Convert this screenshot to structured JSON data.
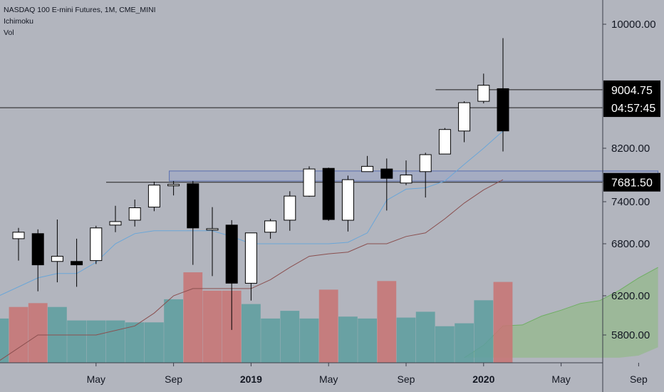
{
  "header": {
    "symbol": "NASDAQ 100 E-mini Futures, 1M, CME_MINI",
    "indicator1": "Ichimoku",
    "indicator2": "Vol"
  },
  "price_tags": [
    {
      "value": 9004.75,
      "label": "9004.75"
    },
    {
      "value": 8750,
      "label": "04:57:45"
    },
    {
      "value": 7681.5,
      "label": "7681.50"
    }
  ],
  "colors": {
    "background": "#b2b5be",
    "up_body": "#ffffff",
    "down_body": "#000000",
    "wick": "#000000",
    "vol_up": "#5f9e9f",
    "vol_down": "#c77575",
    "tenkan": "#6aa6d8",
    "kijun": "#8a4f4f",
    "cloud": "#8bb97a",
    "zone_fill": "#9aa4c4",
    "zone_border": "#5a6fb0",
    "tag_bg": "#000000"
  },
  "chart_data": {
    "type": "candlestick",
    "title": "NASDAQ 100 E-mini Futures, 1M, CME_MINI",
    "y_ticks": [
      5800,
      6200,
      6800,
      7400,
      8200,
      10000
    ],
    "y_tick_labels": [
      "5800.00",
      "6200.00",
      "6800.00",
      "7400.00",
      "8200.00",
      "10000.00"
    ],
    "x_ticks": [
      {
        "label": "May",
        "month": "2018-05",
        "bold": false
      },
      {
        "label": "Sep",
        "month": "2018-09",
        "bold": false
      },
      {
        "label": "2019",
        "month": "2019-01",
        "bold": true
      },
      {
        "label": "May",
        "month": "2019-05",
        "bold": false
      },
      {
        "label": "Sep",
        "month": "2019-09",
        "bold": false
      },
      {
        "label": "2020",
        "month": "2020-01",
        "bold": true
      },
      {
        "label": "May",
        "month": "2020-05",
        "bold": false
      },
      {
        "label": "Sep",
        "month": "2020-09",
        "bold": false
      }
    ],
    "candles": [
      {
        "month": "2018-01",
        "open": 6870,
        "high": 7020,
        "low": 6600,
        "close": 6960
      },
      {
        "month": "2018-02",
        "open": 6940,
        "high": 7000,
        "low": 6250,
        "close": 6550
      },
      {
        "month": "2018-03",
        "open": 6590,
        "high": 7140,
        "low": 6350,
        "close": 6650
      },
      {
        "month": "2018-04",
        "open": 6590,
        "high": 6870,
        "low": 6300,
        "close": 6550
      },
      {
        "month": "2018-05",
        "open": 6600,
        "high": 7050,
        "low": 6560,
        "close": 7020
      },
      {
        "month": "2018-06",
        "open": 7060,
        "high": 7340,
        "low": 6960,
        "close": 7110
      },
      {
        "month": "2018-07",
        "open": 7130,
        "high": 7430,
        "low": 7040,
        "close": 7310
      },
      {
        "month": "2018-08",
        "open": 7320,
        "high": 7690,
        "low": 7260,
        "close": 7640
      },
      {
        "month": "2018-09",
        "open": 7640,
        "high": 7700,
        "low": 7490,
        "close": 7650
      },
      {
        "month": "2018-10",
        "open": 7660,
        "high": 7700,
        "low": 6550,
        "close": 7020
      },
      {
        "month": "2018-11",
        "open": 7000,
        "high": 7320,
        "low": 6420,
        "close": 7010
      },
      {
        "month": "2018-12",
        "open": 7060,
        "high": 7130,
        "low": 5850,
        "close": 6340
      },
      {
        "month": "2019-01",
        "open": 6340,
        "high": 6950,
        "low": 6150,
        "close": 6950
      },
      {
        "month": "2019-02",
        "open": 6960,
        "high": 7150,
        "low": 6870,
        "close": 7120
      },
      {
        "month": "2019-03",
        "open": 7130,
        "high": 7550,
        "low": 6980,
        "close": 7480
      },
      {
        "month": "2019-04",
        "open": 7480,
        "high": 7920,
        "low": 7470,
        "close": 7880
      },
      {
        "month": "2019-05",
        "open": 7890,
        "high": 7900,
        "low": 7120,
        "close": 7140
      },
      {
        "month": "2019-06",
        "open": 7130,
        "high": 7780,
        "low": 6970,
        "close": 7720
      },
      {
        "month": "2019-07",
        "open": 7840,
        "high": 8080,
        "low": 7840,
        "close": 7920
      },
      {
        "month": "2019-08",
        "open": 7880,
        "high": 8040,
        "low": 7270,
        "close": 7740
      },
      {
        "month": "2019-09",
        "open": 7670,
        "high": 8010,
        "low": 7640,
        "close": 7790
      },
      {
        "month": "2019-10",
        "open": 7840,
        "high": 8130,
        "low": 7460,
        "close": 8100
      },
      {
        "month": "2019-11",
        "open": 8110,
        "high": 8470,
        "low": 8110,
        "close": 8450
      },
      {
        "month": "2019-12",
        "open": 8430,
        "high": 8840,
        "low": 8280,
        "close": 8820
      },
      {
        "month": "2020-01",
        "open": 8840,
        "high": 9240,
        "low": 8810,
        "close": 9070
      },
      {
        "month": "2020-02",
        "open": 9020,
        "high": 9780,
        "low": 8150,
        "close": 8430
      }
    ],
    "volume_bars": [
      {
        "month": "2017-12",
        "direction": "up",
        "level": 0.46
      },
      {
        "month": "2018-01",
        "direction": "down",
        "level": 0.58
      },
      {
        "month": "2018-02",
        "direction": "down",
        "level": 0.62
      },
      {
        "month": "2018-03",
        "direction": "up",
        "level": 0.58
      },
      {
        "month": "2018-04",
        "direction": "up",
        "level": 0.44
      },
      {
        "month": "2018-05",
        "direction": "up",
        "level": 0.44
      },
      {
        "month": "2018-06",
        "direction": "up",
        "level": 0.44
      },
      {
        "month": "2018-07",
        "direction": "up",
        "level": 0.42
      },
      {
        "month": "2018-08",
        "direction": "up",
        "level": 0.42
      },
      {
        "month": "2018-09",
        "direction": "up",
        "level": 0.66
      },
      {
        "month": "2018-10",
        "direction": "down",
        "level": 0.94
      },
      {
        "month": "2018-11",
        "direction": "down",
        "level": 0.75
      },
      {
        "month": "2018-12",
        "direction": "down",
        "level": 0.75
      },
      {
        "month": "2019-01",
        "direction": "up",
        "level": 0.61
      },
      {
        "month": "2019-02",
        "direction": "up",
        "level": 0.46
      },
      {
        "month": "2019-03",
        "direction": "up",
        "level": 0.54
      },
      {
        "month": "2019-04",
        "direction": "up",
        "level": 0.46
      },
      {
        "month": "2019-05",
        "direction": "down",
        "level": 0.76
      },
      {
        "month": "2019-06",
        "direction": "up",
        "level": 0.48
      },
      {
        "month": "2019-07",
        "direction": "up",
        "level": 0.46
      },
      {
        "month": "2019-08",
        "direction": "down",
        "level": 0.85
      },
      {
        "month": "2019-09",
        "direction": "up",
        "level": 0.47
      },
      {
        "month": "2019-10",
        "direction": "up",
        "level": 0.53
      },
      {
        "month": "2019-11",
        "direction": "up",
        "level": 0.38
      },
      {
        "month": "2019-12",
        "direction": "up",
        "level": 0.41
      },
      {
        "month": "2020-01",
        "direction": "up",
        "level": 0.65
      },
      {
        "month": "2020-02",
        "direction": "down",
        "level": 0.84
      }
    ],
    "tenkan_sen": [
      {
        "month": "2017-12",
        "value": 6200
      },
      {
        "month": "2018-02",
        "value": 6400
      },
      {
        "month": "2018-03",
        "value": 6450
      },
      {
        "month": "2018-04",
        "value": 6450
      },
      {
        "month": "2018-05",
        "value": 6580
      },
      {
        "month": "2018-06",
        "value": 6800
      },
      {
        "month": "2018-07",
        "value": 6940
      },
      {
        "month": "2018-08",
        "value": 6980
      },
      {
        "month": "2018-09",
        "value": 6980
      },
      {
        "month": "2018-10",
        "value": 6980
      },
      {
        "month": "2018-11",
        "value": 6980
      },
      {
        "month": "2018-12",
        "value": 6900
      },
      {
        "month": "2019-01",
        "value": 6800
      },
      {
        "month": "2019-02",
        "value": 6800
      },
      {
        "month": "2019-03",
        "value": 6800
      },
      {
        "month": "2019-04",
        "value": 6800
      },
      {
        "month": "2019-05",
        "value": 6800
      },
      {
        "month": "2019-06",
        "value": 6820
      },
      {
        "month": "2019-07",
        "value": 6950
      },
      {
        "month": "2019-08",
        "value": 7420
      },
      {
        "month": "2019-09",
        "value": 7580
      },
      {
        "month": "2019-10",
        "value": 7600
      },
      {
        "month": "2019-11",
        "value": 7700
      },
      {
        "month": "2019-12",
        "value": 7950
      },
      {
        "month": "2020-01",
        "value": 8200
      },
      {
        "month": "2020-02",
        "value": 8430
      }
    ],
    "kijun_sen": [
      {
        "month": "2017-12",
        "value": 5550
      },
      {
        "month": "2018-02",
        "value": 5800
      },
      {
        "month": "2018-03",
        "value": 5800
      },
      {
        "month": "2018-04",
        "value": 5800
      },
      {
        "month": "2018-05",
        "value": 5800
      },
      {
        "month": "2018-07",
        "value": 5890
      },
      {
        "month": "2018-08",
        "value": 6020
      },
      {
        "month": "2018-09",
        "value": 6200
      },
      {
        "month": "2018-10",
        "value": 6280
      },
      {
        "month": "2018-11",
        "value": 6280
      },
      {
        "month": "2018-12",
        "value": 6280
      },
      {
        "month": "2019-01",
        "value": 6280
      },
      {
        "month": "2019-02",
        "value": 6380
      },
      {
        "month": "2019-03",
        "value": 6520
      },
      {
        "month": "2019-04",
        "value": 6650
      },
      {
        "month": "2019-05",
        "value": 6680
      },
      {
        "month": "2019-06",
        "value": 6700
      },
      {
        "month": "2019-07",
        "value": 6800
      },
      {
        "month": "2019-08",
        "value": 6800
      },
      {
        "month": "2019-09",
        "value": 6900
      },
      {
        "month": "2019-10",
        "value": 6950
      },
      {
        "month": "2019-11",
        "value": 7150
      },
      {
        "month": "2019-12",
        "value": 7380
      },
      {
        "month": "2020-01",
        "value": 7570
      },
      {
        "month": "2020-02",
        "value": 7720
      }
    ],
    "cloud_top": [
      {
        "month": "2019-12",
        "value": 5580
      },
      {
        "month": "2020-01",
        "value": 5700
      },
      {
        "month": "2020-02",
        "value": 5890
      },
      {
        "month": "2020-03",
        "value": 5900
      },
      {
        "month": "2020-04",
        "value": 5990
      },
      {
        "month": "2020-05",
        "value": 6050
      },
      {
        "month": "2020-06",
        "value": 6120
      },
      {
        "month": "2020-07",
        "value": 6150
      },
      {
        "month": "2020-08",
        "value": 6260
      },
      {
        "month": "2020-09",
        "value": 6400
      },
      {
        "month": "2020-10",
        "value": 6520
      }
    ],
    "cloud_bottom": [
      {
        "month": "2019-12",
        "value": 5580
      },
      {
        "month": "2020-01",
        "value": 5580
      },
      {
        "month": "2020-02",
        "value": 5580
      },
      {
        "month": "2020-03",
        "value": 5580
      },
      {
        "month": "2020-04",
        "value": 5580
      },
      {
        "month": "2020-05",
        "value": 5580
      },
      {
        "month": "2020-06",
        "value": 5580
      },
      {
        "month": "2020-07",
        "value": 5580
      },
      {
        "month": "2020-08",
        "value": 5580
      },
      {
        "month": "2020-09",
        "value": 5600
      },
      {
        "month": "2020-10",
        "value": 5680
      }
    ],
    "horizontal_lines": [
      {
        "value": 9004.75,
        "from_month": "2019-11"
      },
      {
        "value": 8750,
        "from_month": "2017-12"
      },
      {
        "value": 7681.5,
        "from_month": "2018-06"
      }
    ],
    "zone": {
      "from_month": "2018-09",
      "to_month": "2020-10",
      "low": 7700,
      "high": 7850
    },
    "grid": false
  }
}
